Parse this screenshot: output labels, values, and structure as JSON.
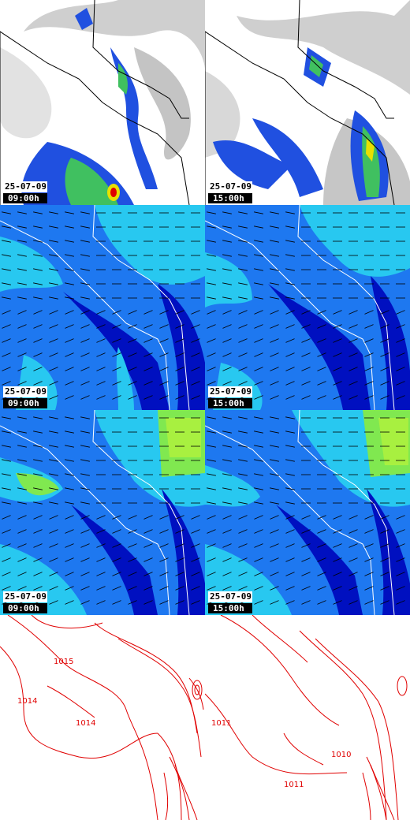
{
  "rows": [
    {
      "name": "precipitation-cloud",
      "panels": [
        {
          "date": "25-07-09",
          "time": "09:00h"
        },
        {
          "date": "25-07-09",
          "time": "15:00h"
        }
      ]
    },
    {
      "name": "wind-low",
      "panels": [
        {
          "date": "25-07-09",
          "time": "09:00h"
        },
        {
          "date": "25-07-09",
          "time": "15:00h"
        }
      ]
    },
    {
      "name": "wind-high",
      "panels": [
        {
          "date": "25-07-09",
          "time": "09:00h"
        },
        {
          "date": "25-07-09",
          "time": "15:00h"
        }
      ]
    },
    {
      "name": "pressure",
      "panels": [
        {
          "labels": [
            "1014",
            "1015",
            "1014"
          ]
        },
        {
          "labels": [
            "1011",
            "1010",
            "1011"
          ]
        }
      ]
    }
  ],
  "colors": {
    "rain_low": "#2050e0",
    "rain_mid": "#40c060",
    "rain_high": "#e00000",
    "wind_dark": "#0010c0",
    "wind_mid": "#1e78f0",
    "wind_light": "#28c8f0",
    "isobar": "#e00000"
  }
}
